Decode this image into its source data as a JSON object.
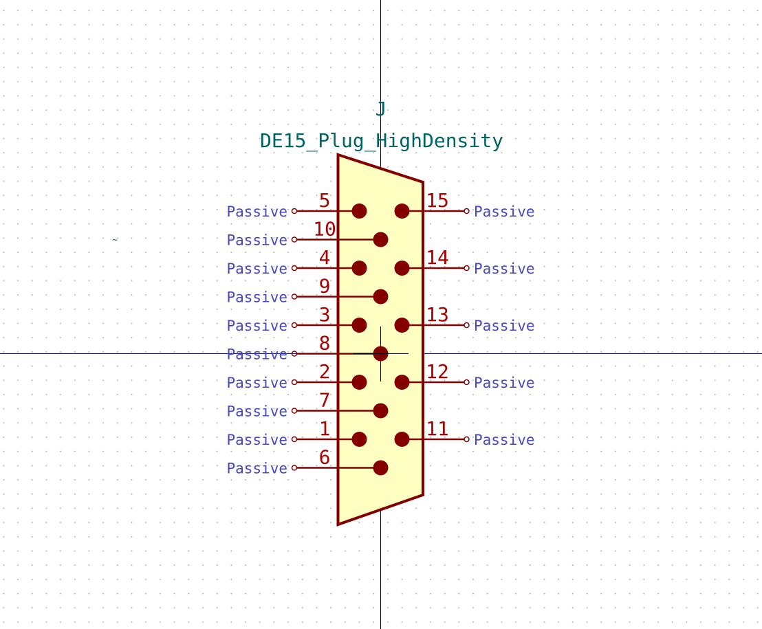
{
  "symbol": {
    "reference": "J",
    "value": "DE15_Plug_HighDensity",
    "left_pins": [
      {
        "number": "5",
        "type": "Passive"
      },
      {
        "number": "10",
        "type": "Passive"
      },
      {
        "number": "4",
        "type": "Passive"
      },
      {
        "number": "9",
        "type": "Passive"
      },
      {
        "number": "3",
        "type": "Passive"
      },
      {
        "number": "8",
        "type": "Passive"
      },
      {
        "number": "2",
        "type": "Passive"
      },
      {
        "number": "7",
        "type": "Passive"
      },
      {
        "number": "1",
        "type": "Passive"
      },
      {
        "number": "6",
        "type": "Passive"
      }
    ],
    "right_pins": [
      {
        "number": "15",
        "type": "Passive"
      },
      {
        "number": "14",
        "type": "Passive"
      },
      {
        "number": "13",
        "type": "Passive"
      },
      {
        "number": "12",
        "type": "Passive"
      },
      {
        "number": "11",
        "type": "Passive"
      }
    ],
    "marker": "~"
  },
  "colors": {
    "body_fill": "#ffffc2",
    "body_stroke": "#840000",
    "pin_number": "#a90000",
    "pin_type": "#4848c0",
    "field_text": "#006464",
    "axis": "#000084",
    "background": "#ffffff"
  }
}
